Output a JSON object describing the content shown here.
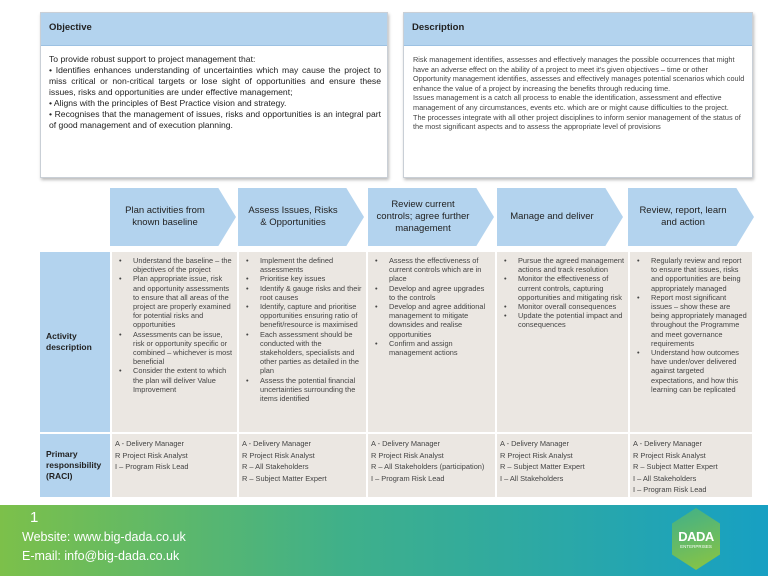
{
  "objective": {
    "title": "Objective",
    "lines": [
      "To provide robust support to project management that:",
      "• Identifies enhances understanding of uncertainties which may cause the project to  miss critical or non-critical targets or lose sight of opportunities and ensure these issues, risks and opportunities are under effective management;",
      "• Aligns with the principles of Best Practice vision and strategy.",
      "• Recognises that the management of issues, risks and opportunities is an integral part of good management and of execution planning."
    ]
  },
  "description": {
    "title": "Description",
    "lines": [
      "Risk management  identifies, assesses and effectively manages the  possible  occurrences that might have an adverse effect on the ability of a project to meet it's given objectives – time or other",
      "Opportunity management  identifies, assesses and effectively manages potential scenarios which could enhance the value of a project by increasing the benefits through  reducing time.",
      "Issues management  is a catch all process to enable the identification, assessment  and effective management  of any circumstances, events  etc. which are or might cause difficulties to the project.",
      "The processes integrate with all other project disciplines to inform senior  management  of the status  of the most significant aspects and to assess the appropriate level  of provisions"
    ]
  },
  "stages": [
    "Plan activities from known baseline",
    "Assess Issues, Risks & Opportunities",
    "Review current controls; agree further management",
    "Manage and deliver",
    "Review, report, learn and action"
  ],
  "row_labels": {
    "activity": "Activity description",
    "raci": "Primary responsibility (RACI)"
  },
  "activities": [
    [
      "Understand the baseline – the objectives of the project",
      "Plan appropriate issue, risk and opportunity assessments to ensure that all areas of the project are properly examined for potential risks and opportunities",
      "Assessments can be issue, risk or opportunity specific or combined – whichever is most beneficial",
      "Consider the extent to which the plan will deliver Value Improvement"
    ],
    [
      "Implement the defined assessments",
      "Prioritise key issues",
      "Identify & gauge risks and their root causes",
      "Identify, capture and prioritise opportunities ensuring ratio of benefit/resource is maximised",
      "Each assessment should be conducted with the stakeholders, specialists and other parties as detailed in the plan",
      "Assess the potential financial uncertainties surrounding the items identified"
    ],
    [
      "Assess the effectiveness of current controls which are in place",
      "Develop and agree upgrades to the controls",
      "Develop and agree additional management to mitigate downsides and realise opportunities",
      "Confirm and assign management actions"
    ],
    [
      "Pursue the agreed management actions and track resolution",
      "Monitor the effectiveness of current controls, capturing opportunities and mitigating risk",
      "Monitor overall consequences",
      "Update the potential impact and consequences"
    ],
    [
      "Regularly review and report to ensure that issues, risks and opportunities are being appropriately managed",
      "Report most significant issues – show these are being appropriately managed throughout the Programme and meet governance requirements",
      "Understand how outcomes have under/over delivered against targeted expectations, and how this learning can be replicated"
    ]
  ],
  "raci": [
    [
      "A - Delivery Manager",
      "R   Project Risk Analyst",
      "I – Program Risk Lead"
    ],
    [
      "A - Delivery Manager",
      "R   Project Risk Analyst",
      "R – All Stakeholders",
      "R – Subject Matter Expert"
    ],
    [
      "A - Delivery Manager",
      "R   Project Risk Analyst",
      "R – All Stakeholders (participation)",
      "I – Program Risk Lead"
    ],
    [
      "A - Delivery Manager",
      "R   Project Risk Analyst",
      "R – Subject Matter Expert",
      "I – All Stakeholders"
    ],
    [
      "A - Delivery Manager",
      "R   Project Risk Analyst",
      "R – Subject Matter Expert",
      "I – All Stakeholders",
      "I – Program Risk Lead"
    ]
  ],
  "footer": {
    "page": "1",
    "website": "Website: www.big-dada.co.uk",
    "email": "E-mail: info@big-dada.co.uk",
    "logo_text": "DADA",
    "logo_sub": "ENTERPRISES"
  },
  "colors": {
    "header_blue": "#b3d3ee",
    "cell_bg": "#ebe7e2",
    "footer_green": "#7cc04a",
    "footer_blue": "#17a0c3"
  }
}
